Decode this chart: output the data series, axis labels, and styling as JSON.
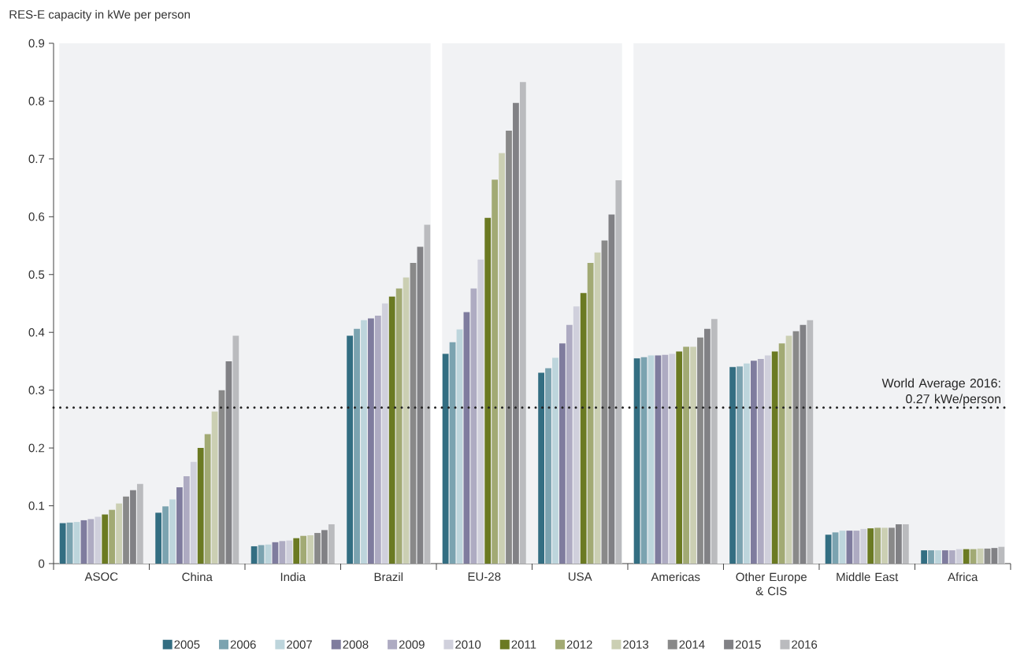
{
  "chart_data": {
    "type": "bar",
    "ylabel": "RES-E capacity in kWe per person",
    "categories": [
      "ASOC",
      "China",
      "India",
      "Brazil",
      "EU-28",
      "USA",
      "Americas",
      "Other Europe & CIS",
      "Middle East",
      "Africa"
    ],
    "series": [
      {
        "name": "2005",
        "color": "#336e82",
        "values": [
          0.07,
          0.088,
          0.03,
          0.394,
          0.363,
          0.33,
          0.355,
          0.34,
          0.05,
          0.023
        ]
      },
      {
        "name": "2006",
        "color": "#7ba3b0",
        "values": [
          0.071,
          0.099,
          0.032,
          0.406,
          0.383,
          0.338,
          0.357,
          0.341,
          0.054,
          0.023
        ]
      },
      {
        "name": "2007",
        "color": "#bdd5dc",
        "values": [
          0.072,
          0.111,
          0.033,
          0.421,
          0.405,
          0.356,
          0.36,
          0.346,
          0.057,
          0.023
        ]
      },
      {
        "name": "2008",
        "color": "#7f7c9e",
        "values": [
          0.075,
          0.132,
          0.037,
          0.424,
          0.435,
          0.381,
          0.36,
          0.351,
          0.057,
          0.023
        ]
      },
      {
        "name": "2009",
        "color": "#aeabc2",
        "values": [
          0.077,
          0.151,
          0.039,
          0.429,
          0.476,
          0.413,
          0.361,
          0.354,
          0.057,
          0.023
        ]
      },
      {
        "name": "2010",
        "color": "#d0d0dc",
        "values": [
          0.081,
          0.176,
          0.04,
          0.45,
          0.526,
          0.445,
          0.363,
          0.36,
          0.06,
          0.025
        ]
      },
      {
        "name": "2011",
        "color": "#6b7a22",
        "values": [
          0.085,
          0.2,
          0.044,
          0.462,
          0.598,
          0.468,
          0.367,
          0.367,
          0.061,
          0.025
        ]
      },
      {
        "name": "2012",
        "color": "#a2aa74",
        "values": [
          0.093,
          0.224,
          0.048,
          0.476,
          0.664,
          0.52,
          0.375,
          0.381,
          0.062,
          0.025
        ]
      },
      {
        "name": "2013",
        "color": "#cbcfb3",
        "values": [
          0.104,
          0.263,
          0.049,
          0.495,
          0.71,
          0.538,
          0.375,
          0.394,
          0.062,
          0.026
        ]
      },
      {
        "name": "2014",
        "color": "#898989",
        "values": [
          0.116,
          0.3,
          0.053,
          0.52,
          0.749,
          0.559,
          0.391,
          0.402,
          0.062,
          0.026
        ]
      },
      {
        "name": "2015",
        "color": "#818185",
        "values": [
          0.127,
          0.35,
          0.058,
          0.548,
          0.797,
          0.604,
          0.406,
          0.413,
          0.068,
          0.027
        ]
      },
      {
        "name": "2016",
        "color": "#babbbe",
        "values": [
          0.138,
          0.394,
          0.068,
          0.586,
          0.833,
          0.663,
          0.423,
          0.421,
          0.068,
          0.029
        ]
      }
    ],
    "ylim": [
      0,
      0.9
    ],
    "yticks": [
      0,
      0.1,
      0.2,
      0.3,
      0.4,
      0.5,
      0.6,
      0.7,
      0.8,
      0.9
    ],
    "ref_lines": [
      {
        "axis": "y",
        "value": 0.27,
        "label": "World Average 2016: 0.27 kWe/person",
        "color": "#222222",
        "line_style": "dotted"
      }
    ],
    "bands": [
      {
        "axis": "x",
        "from": "ASOC",
        "to": "Brazil",
        "color": "#f1f2f4"
      },
      {
        "axis": "x",
        "from": "EU-28",
        "to": "USA",
        "color": "#f1f2f4"
      },
      {
        "axis": "x",
        "from": "Americas",
        "to": "Africa",
        "color": "#f1f2f4"
      }
    ],
    "legend": "bottom"
  }
}
